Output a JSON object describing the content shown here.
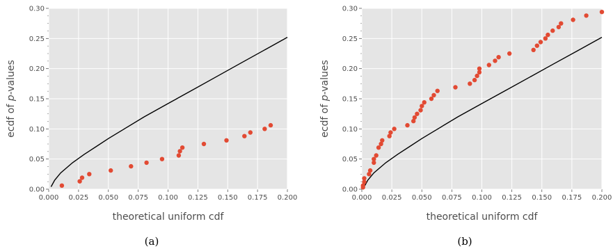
{
  "colors": {
    "panel_bg": "#e5e5e5",
    "grid": "#ffffff",
    "points": "#e24a33",
    "reference_line": "#000000",
    "text": "#4d4d4d"
  },
  "chart_data": [
    {
      "type": "scatter",
      "caption": "(a)",
      "xlabel": "theoretical uniform cdf",
      "ylabel_prefix": "ecdf of ",
      "ylabel_italic": "p",
      "ylabel_suffix": "-values",
      "xlim": [
        0,
        0.2
      ],
      "ylim": [
        0,
        0.3
      ],
      "xticks": [
        "0.000",
        "0.025",
        "0.050",
        "0.075",
        "0.100",
        "0.125",
        "0.150",
        "0.175",
        "0.200"
      ],
      "yticks": [
        "0.00",
        "0.05",
        "0.10",
        "0.15",
        "0.20",
        "0.25",
        "0.30"
      ],
      "grid": true,
      "points": [
        [
          0.011,
          0.006
        ],
        [
          0.026,
          0.013
        ],
        [
          0.028,
          0.019
        ],
        [
          0.034,
          0.025
        ],
        [
          0.052,
          0.031
        ],
        [
          0.069,
          0.038
        ],
        [
          0.082,
          0.044
        ],
        [
          0.095,
          0.05
        ],
        [
          0.109,
          0.056
        ],
        [
          0.11,
          0.063
        ],
        [
          0.112,
          0.069
        ],
        [
          0.13,
          0.075
        ],
        [
          0.149,
          0.081
        ],
        [
          0.164,
          0.088
        ],
        [
          0.169,
          0.094
        ],
        [
          0.181,
          0.1
        ],
        [
          0.186,
          0.106
        ]
      ],
      "curve": [
        [
          0.002,
          0.004
        ],
        [
          0.005,
          0.015
        ],
        [
          0.01,
          0.027
        ],
        [
          0.02,
          0.044
        ],
        [
          0.03,
          0.058
        ],
        [
          0.04,
          0.071
        ],
        [
          0.05,
          0.084
        ],
        [
          0.06,
          0.096
        ],
        [
          0.08,
          0.12
        ],
        [
          0.1,
          0.142
        ],
        [
          0.12,
          0.164
        ],
        [
          0.14,
          0.186
        ],
        [
          0.16,
          0.208
        ],
        [
          0.18,
          0.23
        ],
        [
          0.2,
          0.252
        ]
      ]
    },
    {
      "type": "scatter",
      "caption": "(b)",
      "xlabel": "theoretical uniform cdf",
      "ylabel_prefix": "ecdf of ",
      "ylabel_italic": "p",
      "ylabel_suffix": "-values",
      "xlim": [
        0,
        0.2
      ],
      "ylim": [
        0,
        0.3
      ],
      "xticks": [
        "0.000",
        "0.025",
        "0.050",
        "0.075",
        "0.100",
        "0.125",
        "0.150",
        "0.175",
        "0.200"
      ],
      "yticks": [
        "0.00",
        "0.05",
        "0.10",
        "0.15",
        "0.20",
        "0.25",
        "0.30"
      ],
      "grid": true,
      "points": [
        [
          0.001,
          0.003
        ],
        [
          0.001,
          0.006
        ],
        [
          0.002,
          0.012
        ],
        [
          0.002,
          0.018
        ],
        [
          0.006,
          0.025
        ],
        [
          0.007,
          0.031
        ],
        [
          0.01,
          0.044
        ],
        [
          0.01,
          0.05
        ],
        [
          0.012,
          0.056
        ],
        [
          0.014,
          0.069
        ],
        [
          0.016,
          0.075
        ],
        [
          0.017,
          0.081
        ],
        [
          0.023,
          0.088
        ],
        [
          0.024,
          0.094
        ],
        [
          0.027,
          0.1
        ],
        [
          0.038,
          0.106
        ],
        [
          0.043,
          0.113
        ],
        [
          0.044,
          0.119
        ],
        [
          0.046,
          0.125
        ],
        [
          0.049,
          0.131
        ],
        [
          0.05,
          0.138
        ],
        [
          0.052,
          0.144
        ],
        [
          0.058,
          0.15
        ],
        [
          0.06,
          0.156
        ],
        [
          0.063,
          0.163
        ],
        [
          0.078,
          0.169
        ],
        [
          0.09,
          0.175
        ],
        [
          0.094,
          0.181
        ],
        [
          0.096,
          0.188
        ],
        [
          0.098,
          0.194
        ],
        [
          0.098,
          0.2
        ],
        [
          0.106,
          0.206
        ],
        [
          0.111,
          0.213
        ],
        [
          0.114,
          0.219
        ],
        [
          0.123,
          0.225
        ],
        [
          0.143,
          0.231
        ],
        [
          0.146,
          0.238
        ],
        [
          0.149,
          0.244
        ],
        [
          0.153,
          0.25
        ],
        [
          0.155,
          0.256
        ],
        [
          0.159,
          0.263
        ],
        [
          0.164,
          0.269
        ],
        [
          0.166,
          0.275
        ],
        [
          0.176,
          0.281
        ],
        [
          0.187,
          0.288
        ],
        [
          0.2,
          0.294
        ]
      ],
      "curve": [
        [
          0.002,
          0.004
        ],
        [
          0.005,
          0.015
        ],
        [
          0.01,
          0.027
        ],
        [
          0.02,
          0.044
        ],
        [
          0.03,
          0.058
        ],
        [
          0.04,
          0.071
        ],
        [
          0.05,
          0.084
        ],
        [
          0.06,
          0.096
        ],
        [
          0.08,
          0.12
        ],
        [
          0.1,
          0.142
        ],
        [
          0.12,
          0.164
        ],
        [
          0.14,
          0.186
        ],
        [
          0.16,
          0.208
        ],
        [
          0.18,
          0.23
        ],
        [
          0.2,
          0.252
        ]
      ]
    }
  ]
}
